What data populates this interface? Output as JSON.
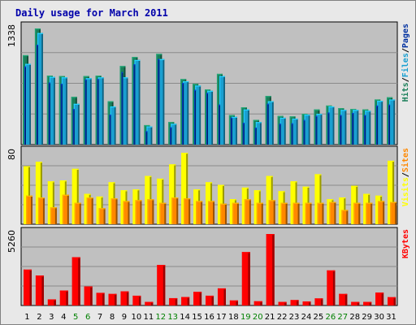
{
  "chart_data": {
    "type": "bar",
    "title": "Daily usage for March 2011",
    "categories": [
      "1",
      "2",
      "3",
      "4",
      "5",
      "6",
      "7",
      "8",
      "9",
      "10",
      "11",
      "12",
      "13",
      "14",
      "15",
      "16",
      "17",
      "18",
      "19",
      "20",
      "21",
      "22",
      "23",
      "24",
      "25",
      "26",
      "27",
      "28",
      "29",
      "30",
      "31"
    ],
    "weekend_days": [
      "5",
      "6",
      "12",
      "13",
      "19",
      "20",
      "26",
      "27"
    ],
    "colors": {
      "hits": "#1a7f5a",
      "files": "#1a9fd0",
      "pages": "#0030a0",
      "visits": "#ffff00",
      "sites": "#ff8800",
      "kbytes": "#ff0000",
      "title_text": "#0000aa",
      "weekday_label": "#000000",
      "weekend_label": "#008000",
      "panel_bg": "#c0c0c0",
      "frame_bg": "#e8e8e8"
    },
    "panels": [
      {
        "id": "hits",
        "max_label": "1338",
        "max": 1338,
        "right_label": [
          {
            "text": "Hits",
            "color": "#1a7f5a"
          },
          {
            "text": "/",
            "color": "#000000"
          },
          {
            "text": "Files",
            "color": "#1a9fd0"
          },
          {
            "text": "/",
            "color": "#000000"
          },
          {
            "text": "Pages",
            "color": "#0030a0"
          }
        ],
        "series": [
          {
            "name": "Hits",
            "values": [
              1030,
              1338,
              795,
              790,
              550,
              790,
              795,
              500,
              905,
              1010,
              225,
              1045,
              260,
              755,
              700,
              635,
              815,
              340,
              430,
              285,
              560,
              330,
              325,
              355,
              405,
              450,
              420,
              410,
              405,
              520,
              545
            ]
          },
          {
            "name": "Files",
            "values": [
              930,
              1285,
              780,
              775,
              470,
              765,
              775,
              440,
              775,
              975,
              210,
              985,
              240,
              730,
              680,
              620,
              790,
              320,
              405,
              260,
              500,
              310,
              300,
              345,
              355,
              440,
              400,
              400,
              390,
              505,
              520
            ]
          },
          {
            "name": "Pages",
            "values": [
              900,
              1150,
              715,
              700,
              410,
              750,
              755,
              345,
              835,
              925,
              155,
              985,
              200,
              710,
              630,
              595,
              460,
              310,
              250,
              195,
              470,
              240,
              245,
              285,
              330,
              370,
              340,
              365,
              340,
              450,
              460
            ]
          }
        ]
      },
      {
        "id": "visits",
        "max_label": "80",
        "max": 80,
        "right_label": [
          {
            "text": "Visits",
            "color": "#ffff00"
          },
          {
            "text": "/",
            "color": "#000000"
          },
          {
            "text": "Sites",
            "color": "#ff8800"
          }
        ],
        "series": [
          {
            "name": "Visits",
            "values": [
              65,
              70,
              48,
              49,
              62,
              34,
              31,
              47,
              38,
              39,
              54,
              51,
              67,
              80,
              39,
              47,
              44,
              28,
              41,
              38,
              54,
              37,
              48,
              42,
              56,
              28,
              30,
              43,
              34,
              32,
              71
            ]
          },
          {
            "name": "Sites",
            "values": [
              32,
              30,
              19,
              33,
              24,
              30,
              18,
              29,
              26,
              27,
              28,
              24,
              30,
              29,
              26,
              26,
              23,
              24,
              28,
              24,
              27,
              24,
              24,
              24,
              24,
              25,
              16,
              24,
              24,
              26,
              25
            ]
          }
        ]
      },
      {
        "id": "kbytes",
        "max_label": "5260",
        "max": 5260,
        "right_label": [
          {
            "text": "KBytes",
            "color": "#ff0000"
          }
        ],
        "series": [
          {
            "name": "KBytes",
            "values": [
              2640,
              2200,
              450,
              1100,
              3550,
              1400,
              930,
              850,
              1040,
              720,
              260,
              2980,
              540,
              620,
              1000,
              720,
              1260,
              370,
              3930,
              310,
              5260,
              260,
              400,
              300,
              520,
              2580,
              850,
              260,
              260,
              950,
              610
            ]
          }
        ]
      }
    ]
  }
}
